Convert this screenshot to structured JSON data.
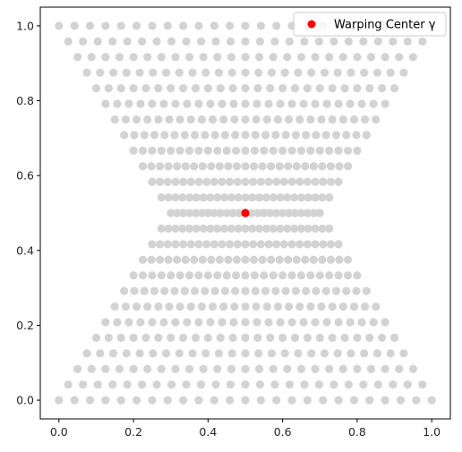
{
  "chart_data": {
    "type": "scatter",
    "title": "",
    "xlabel": "",
    "ylabel": "",
    "xlim": [
      -0.05,
      1.05
    ],
    "ylim": [
      -0.05,
      1.05
    ],
    "x_ticks": [
      0.0,
      0.2,
      0.4,
      0.6,
      0.8,
      1.0
    ],
    "y_ticks": [
      0.0,
      0.2,
      0.4,
      0.6,
      0.8,
      1.0
    ],
    "x_tick_labels": [
      "0.0",
      "0.2",
      "0.4",
      "0.6",
      "0.8",
      "1.0"
    ],
    "y_tick_labels": [
      "0.0",
      "0.2",
      "0.4",
      "0.6",
      "0.8",
      "1.0"
    ],
    "grid": false,
    "legend": {
      "placement": "top-right",
      "entries": [
        "Warping Center γ"
      ]
    },
    "series": [
      {
        "name": "",
        "color": "#d3d3d3",
        "description_of_values": "warped 25x25 lattice of points in [0,1]x[0,1]; horizontal spacing compresses toward x=0.5 as points approach y=0.5",
        "grid_size": 25,
        "warp_center": [
          0.5,
          0.5
        ],
        "warp_strength": 0.6
      },
      {
        "name": "Warping Center γ",
        "color": "#ff0000",
        "x": [
          0.5
        ],
        "y": [
          0.5
        ]
      }
    ]
  }
}
